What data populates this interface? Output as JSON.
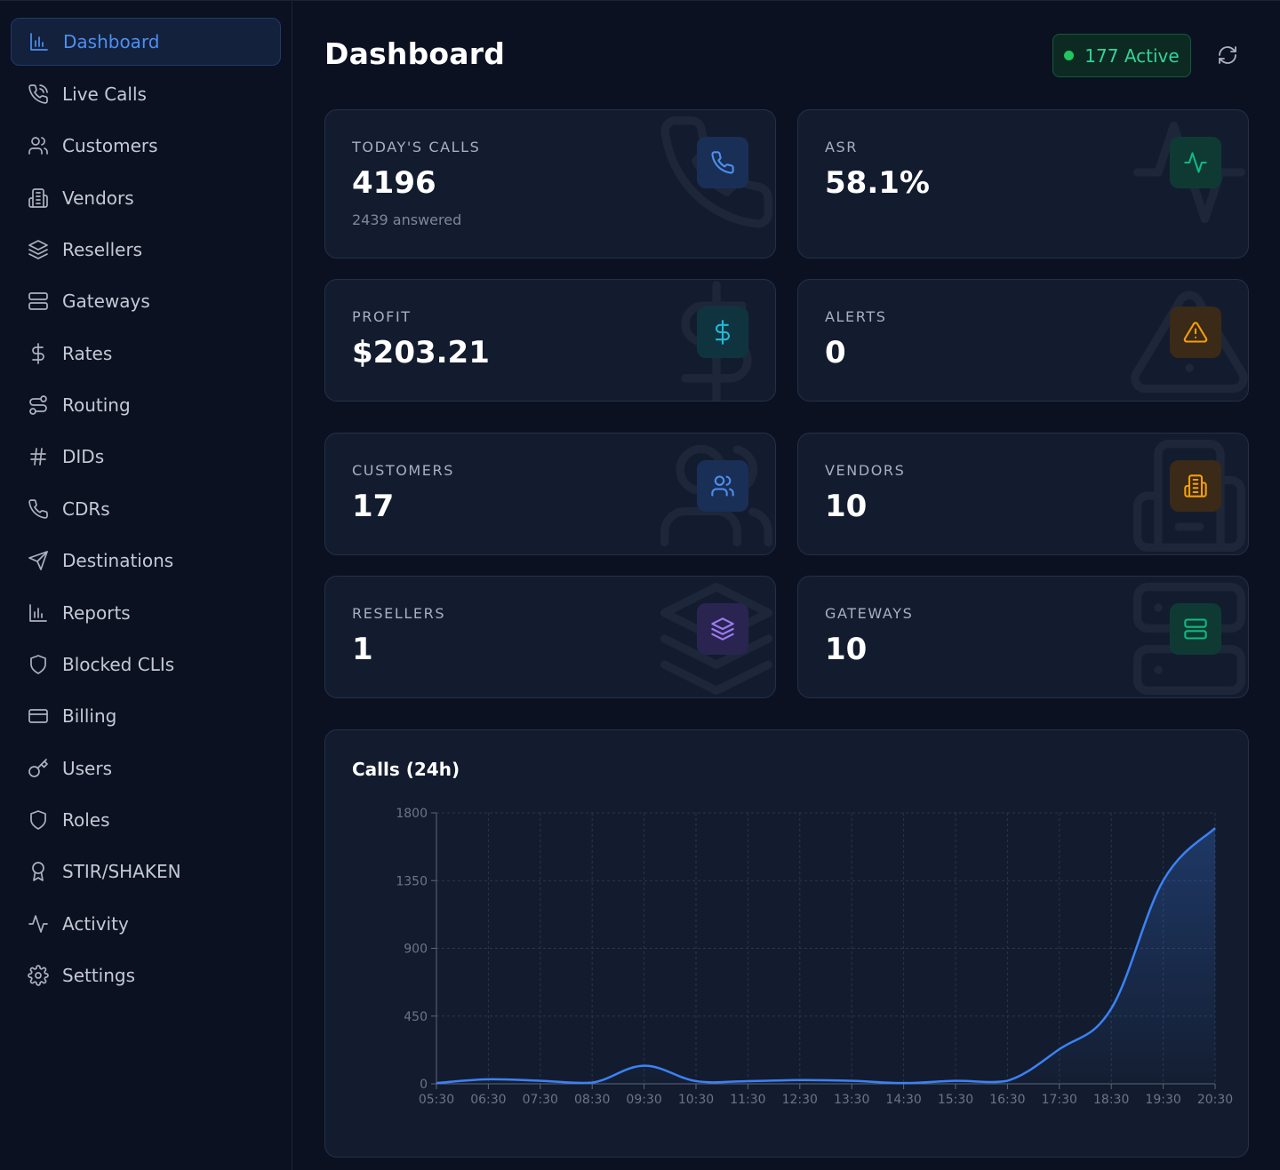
{
  "sidebar": {
    "items": [
      {
        "label": "Dashboard",
        "icon": "bar-chart-icon",
        "active": true
      },
      {
        "label": "Live Calls",
        "icon": "phone-call-icon"
      },
      {
        "label": "Customers",
        "icon": "users-icon"
      },
      {
        "label": "Vendors",
        "icon": "building-icon"
      },
      {
        "label": "Resellers",
        "icon": "layers-icon"
      },
      {
        "label": "Gateways",
        "icon": "server-icon"
      },
      {
        "label": "Rates",
        "icon": "dollar-icon"
      },
      {
        "label": "Routing",
        "icon": "route-icon"
      },
      {
        "label": "DIDs",
        "icon": "hash-icon"
      },
      {
        "label": "CDRs",
        "icon": "phone-icon"
      },
      {
        "label": "Destinations",
        "icon": "send-icon"
      },
      {
        "label": "Reports",
        "icon": "bar-chart-icon"
      },
      {
        "label": "Blocked CLIs",
        "icon": "shield-icon"
      },
      {
        "label": "Billing",
        "icon": "credit-card-icon"
      },
      {
        "label": "Users",
        "icon": "key-icon"
      },
      {
        "label": "Roles",
        "icon": "shield-icon"
      },
      {
        "label": "STIR/SHAKEN",
        "icon": "award-icon"
      },
      {
        "label": "Activity",
        "icon": "activity-icon"
      },
      {
        "label": "Settings",
        "icon": "gear-icon"
      }
    ]
  },
  "header": {
    "title": "Dashboard",
    "active_label": "177 Active"
  },
  "cards": {
    "todays_calls": {
      "label": "TODAY'S CALLS",
      "value": "4196",
      "sub": "2439 answered",
      "icon": "phone-icon",
      "accent": "#3b82f6"
    },
    "asr": {
      "label": "ASR",
      "value": "58.1%",
      "icon": "activity-icon",
      "accent": "#10b981"
    },
    "profit": {
      "label": "PROFIT",
      "value": "$203.21",
      "icon": "dollar-icon",
      "accent": "#06b6d4"
    },
    "alerts": {
      "label": "ALERTS",
      "value": "0",
      "icon": "alert-triangle-icon",
      "accent": "#f59e0b"
    },
    "customers": {
      "label": "CUSTOMERS",
      "value": "17",
      "icon": "users-icon",
      "accent": "#3b82f6"
    },
    "vendors": {
      "label": "VENDORS",
      "value": "10",
      "icon": "building-icon",
      "accent": "#f59e0b"
    },
    "resellers": {
      "label": "RESELLERS",
      "value": "1",
      "icon": "layers-icon",
      "accent": "#8b5cf6"
    },
    "gateways": {
      "label": "GATEWAYS",
      "value": "10",
      "icon": "server-icon",
      "accent": "#10b981"
    }
  },
  "chart_data": {
    "type": "area",
    "title": "Calls (24h)",
    "xlabel": "",
    "ylabel": "",
    "ylim": [
      0,
      1800
    ],
    "yticks": [
      0,
      450,
      900,
      1350,
      1800
    ],
    "categories": [
      "05:30",
      "06:30",
      "07:30",
      "08:30",
      "09:30",
      "10:30",
      "11:30",
      "12:30",
      "13:30",
      "14:30",
      "15:30",
      "16:30",
      "17:30",
      "18:30",
      "19:30",
      "20:30"
    ],
    "values": [
      5,
      30,
      20,
      8,
      120,
      18,
      18,
      25,
      20,
      5,
      20,
      20,
      230,
      500,
      1350,
      1700
    ],
    "grid": true,
    "legend": "none",
    "color": "#3b82f6"
  }
}
